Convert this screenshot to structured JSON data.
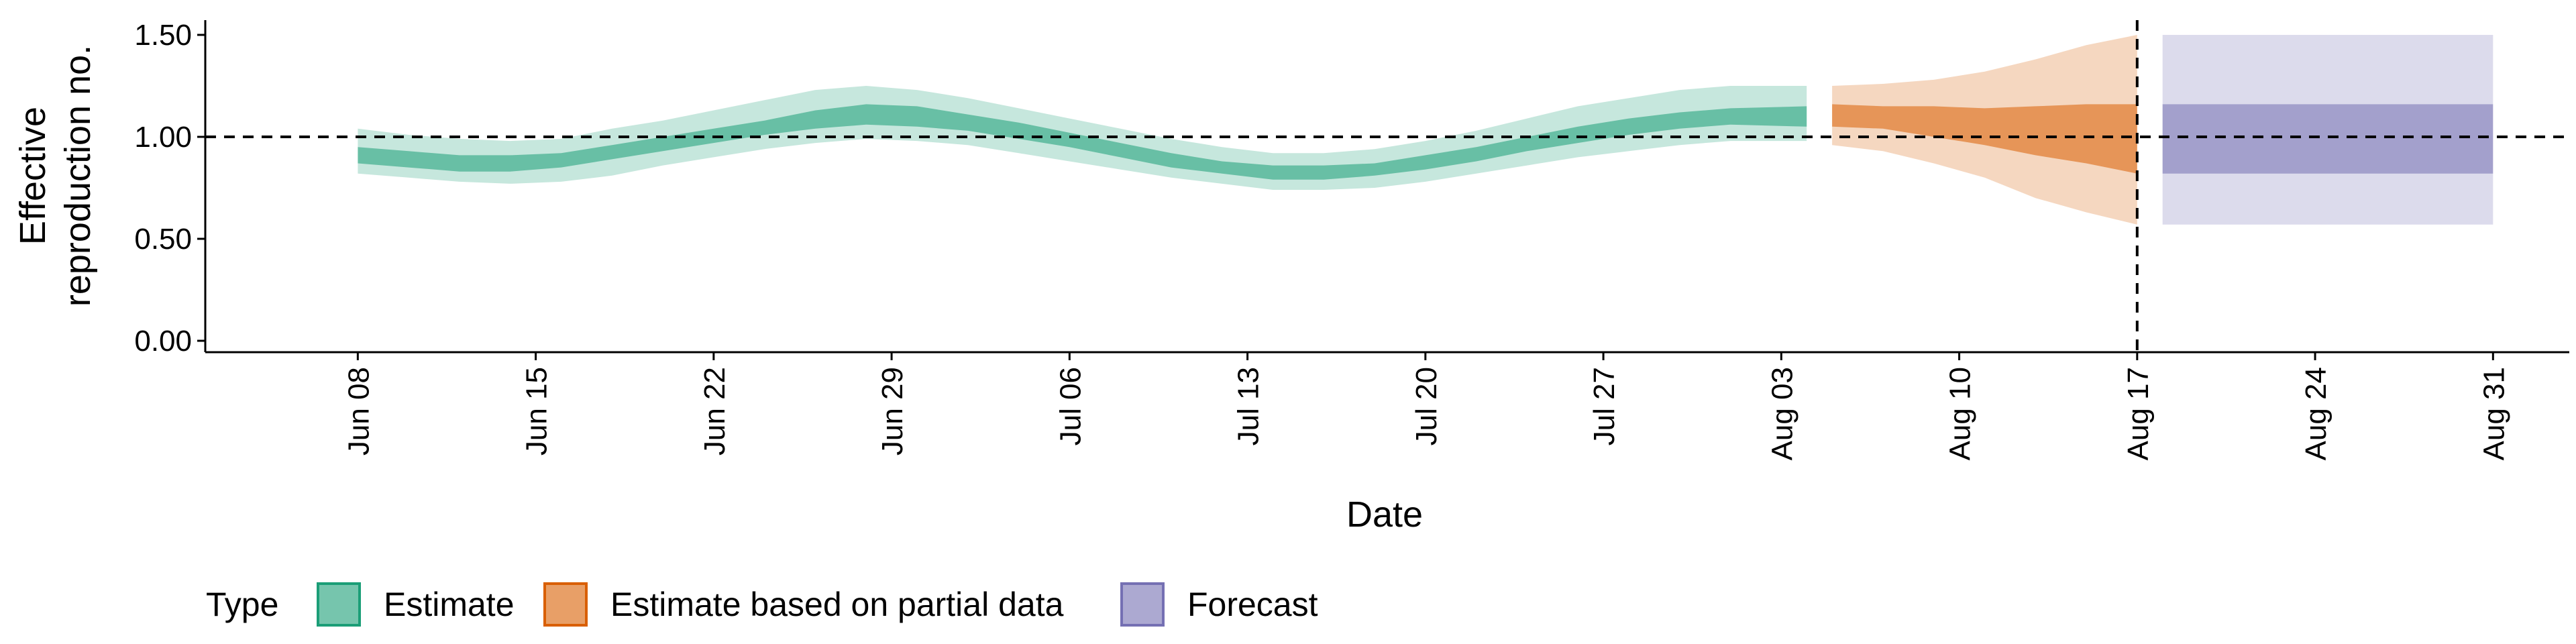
{
  "chart_data": {
    "type": "area",
    "title": "",
    "xlabel": "Date",
    "ylabel": [
      "Effective",
      "reproduction no."
    ],
    "ylim": [
      0,
      1.55
    ],
    "xlim": [
      "2021-06-02",
      "2021-09-03"
    ],
    "y_ticks": [
      "0.00",
      "0.50",
      "1.00",
      "1.50"
    ],
    "x_ticks": [
      {
        "date": "2021-06-08",
        "label": "Jun 08"
      },
      {
        "date": "2021-06-15",
        "label": "Jun 15"
      },
      {
        "date": "2021-06-22",
        "label": "Jun 22"
      },
      {
        "date": "2021-06-29",
        "label": "Jun 29"
      },
      {
        "date": "2021-07-06",
        "label": "Jul 06"
      },
      {
        "date": "2021-07-13",
        "label": "Jul 13"
      },
      {
        "date": "2021-07-20",
        "label": "Jul 20"
      },
      {
        "date": "2021-07-27",
        "label": "Jul 27"
      },
      {
        "date": "2021-08-03",
        "label": "Aug 03"
      },
      {
        "date": "2021-08-10",
        "label": "Aug 10"
      },
      {
        "date": "2021-08-17",
        "label": "Aug 17"
      },
      {
        "date": "2021-08-24",
        "label": "Aug 24"
      },
      {
        "date": "2021-08-31",
        "label": "Aug 31"
      }
    ],
    "reference_lines": {
      "horizontal_y": 1.0,
      "vertical_date": "2021-08-17"
    },
    "grid": false,
    "legend_position": "bottom-left",
    "legend_title": "Type",
    "series": [
      {
        "name": "Estimate",
        "color": "#1b9e77",
        "points": [
          {
            "date": "2021-06-08",
            "lo90": 0.82,
            "lo50": 0.87,
            "hi50": 0.95,
            "hi90": 1.04
          },
          {
            "date": "2021-06-10",
            "lo90": 0.8,
            "lo50": 0.85,
            "hi50": 0.93,
            "hi90": 1.01
          },
          {
            "date": "2021-06-12",
            "lo90": 0.78,
            "lo50": 0.83,
            "hi50": 0.91,
            "hi90": 0.99
          },
          {
            "date": "2021-06-14",
            "lo90": 0.77,
            "lo50": 0.83,
            "hi50": 0.91,
            "hi90": 0.98
          },
          {
            "date": "2021-06-16",
            "lo90": 0.78,
            "lo50": 0.85,
            "hi50": 0.92,
            "hi90": 0.99
          },
          {
            "date": "2021-06-18",
            "lo90": 0.81,
            "lo50": 0.89,
            "hi50": 0.96,
            "hi90": 1.04
          },
          {
            "date": "2021-06-20",
            "lo90": 0.86,
            "lo50": 0.93,
            "hi50": 1.0,
            "hi90": 1.08
          },
          {
            "date": "2021-06-22",
            "lo90": 0.9,
            "lo50": 0.97,
            "hi50": 1.04,
            "hi90": 1.13
          },
          {
            "date": "2021-06-24",
            "lo90": 0.94,
            "lo50": 1.01,
            "hi50": 1.08,
            "hi90": 1.18
          },
          {
            "date": "2021-06-26",
            "lo90": 0.97,
            "lo50": 1.04,
            "hi50": 1.13,
            "hi90": 1.23
          },
          {
            "date": "2021-06-28",
            "lo90": 0.99,
            "lo50": 1.06,
            "hi50": 1.16,
            "hi90": 1.25
          },
          {
            "date": "2021-06-30",
            "lo90": 0.98,
            "lo50": 1.05,
            "hi50": 1.15,
            "hi90": 1.23
          },
          {
            "date": "2021-07-02",
            "lo90": 0.96,
            "lo50": 1.03,
            "hi50": 1.11,
            "hi90": 1.19
          },
          {
            "date": "2021-07-04",
            "lo90": 0.92,
            "lo50": 0.99,
            "hi50": 1.07,
            "hi90": 1.14
          },
          {
            "date": "2021-07-06",
            "lo90": 0.88,
            "lo50": 0.95,
            "hi50": 1.02,
            "hi90": 1.09
          },
          {
            "date": "2021-07-08",
            "lo90": 0.84,
            "lo50": 0.9,
            "hi50": 0.97,
            "hi90": 1.04
          },
          {
            "date": "2021-07-10",
            "lo90": 0.8,
            "lo50": 0.85,
            "hi50": 0.92,
            "hi90": 0.99
          },
          {
            "date": "2021-07-12",
            "lo90": 0.77,
            "lo50": 0.82,
            "hi50": 0.88,
            "hi90": 0.95
          },
          {
            "date": "2021-07-14",
            "lo90": 0.74,
            "lo50": 0.79,
            "hi50": 0.86,
            "hi90": 0.92
          },
          {
            "date": "2021-07-16",
            "lo90": 0.74,
            "lo50": 0.79,
            "hi50": 0.86,
            "hi90": 0.92
          },
          {
            "date": "2021-07-18",
            "lo90": 0.75,
            "lo50": 0.81,
            "hi50": 0.87,
            "hi90": 0.94
          },
          {
            "date": "2021-07-20",
            "lo90": 0.78,
            "lo50": 0.84,
            "hi50": 0.91,
            "hi90": 0.98
          },
          {
            "date": "2021-07-22",
            "lo90": 0.82,
            "lo50": 0.88,
            "hi50": 0.95,
            "hi90": 1.03
          },
          {
            "date": "2021-07-24",
            "lo90": 0.86,
            "lo50": 0.93,
            "hi50": 1.0,
            "hi90": 1.09
          },
          {
            "date": "2021-07-26",
            "lo90": 0.9,
            "lo50": 0.97,
            "hi50": 1.05,
            "hi90": 1.15
          },
          {
            "date": "2021-07-28",
            "lo90": 0.93,
            "lo50": 1.01,
            "hi50": 1.09,
            "hi90": 1.19
          },
          {
            "date": "2021-07-30",
            "lo90": 0.96,
            "lo50": 1.04,
            "hi50": 1.12,
            "hi90": 1.23
          },
          {
            "date": "2021-08-01",
            "lo90": 0.98,
            "lo50": 1.06,
            "hi50": 1.14,
            "hi90": 1.25
          },
          {
            "date": "2021-08-04",
            "lo90": 0.98,
            "lo50": 1.05,
            "hi50": 1.15,
            "hi90": 1.25
          }
        ]
      },
      {
        "name": "Estimate based on partial data",
        "color": "#d95f02",
        "points": [
          {
            "date": "2021-08-05",
            "lo90": 0.96,
            "lo50": 1.05,
            "hi50": 1.16,
            "hi90": 1.25
          },
          {
            "date": "2021-08-07",
            "lo90": 0.93,
            "lo50": 1.04,
            "hi50": 1.15,
            "hi90": 1.26
          },
          {
            "date": "2021-08-09",
            "lo90": 0.87,
            "lo50": 1.0,
            "hi50": 1.15,
            "hi90": 1.28
          },
          {
            "date": "2021-08-11",
            "lo90": 0.8,
            "lo50": 0.96,
            "hi50": 1.14,
            "hi90": 1.32
          },
          {
            "date": "2021-08-13",
            "lo90": 0.7,
            "lo50": 0.91,
            "hi50": 1.15,
            "hi90": 1.38
          },
          {
            "date": "2021-08-15",
            "lo90": 0.63,
            "lo50": 0.87,
            "hi50": 1.16,
            "hi90": 1.45
          },
          {
            "date": "2021-08-17",
            "lo90": 0.57,
            "lo50": 0.82,
            "hi50": 1.16,
            "hi90": 1.5
          }
        ]
      },
      {
        "name": "Forecast",
        "color": "#7570b3",
        "points": [
          {
            "date": "2021-08-18",
            "lo90": 0.57,
            "lo50": 0.82,
            "hi50": 1.16,
            "hi90": 1.5
          },
          {
            "date": "2021-08-31",
            "lo90": 0.57,
            "lo50": 0.82,
            "hi50": 1.16,
            "hi90": 1.5
          }
        ]
      }
    ]
  }
}
